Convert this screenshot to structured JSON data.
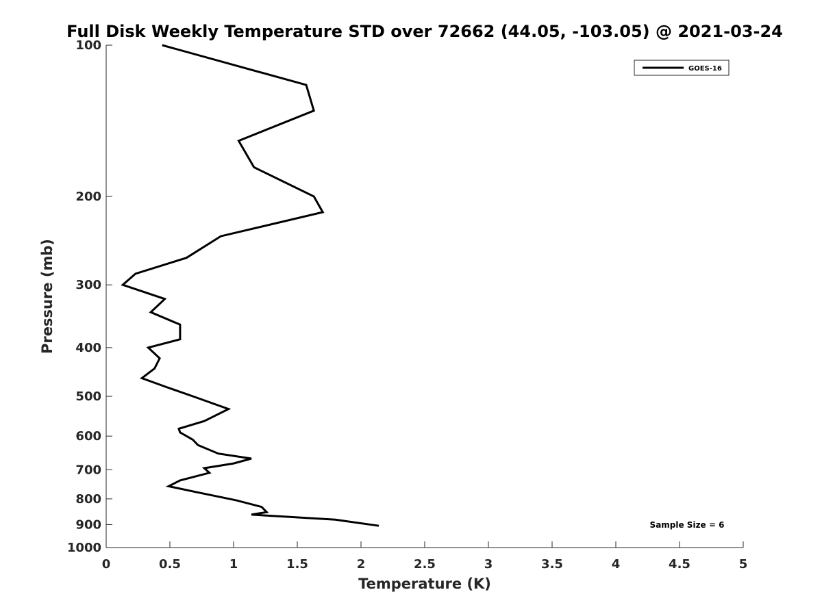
{
  "chart_data": {
    "type": "line",
    "title": "Full Disk Weekly Temperature STD over 72662 (44.05, -103.05) @ 2021-03-24",
    "xlabel": "Temperature (K)",
    "ylabel": "Pressure (mb)",
    "xlim": [
      0,
      5
    ],
    "ylim": [
      100,
      1000
    ],
    "y_scale": "log",
    "y_reversed": true,
    "x_ticks": [
      0,
      0.5,
      1,
      1.5,
      2,
      2.5,
      3,
      3.5,
      4,
      4.5,
      5
    ],
    "x_tick_labels": [
      "0",
      "0.5",
      "1",
      "1.5",
      "2",
      "2.5",
      "3",
      "3.5",
      "4",
      "4.5",
      "5"
    ],
    "y_ticks": [
      100,
      200,
      300,
      400,
      500,
      600,
      700,
      800,
      900,
      1000
    ],
    "y_tick_labels": [
      "100",
      "200",
      "300",
      "400",
      "500",
      "600",
      "700",
      "800",
      "900",
      "1000"
    ],
    "grid": false,
    "legend_position": "top-right",
    "series": [
      {
        "name": "GOES-16",
        "color": "#000000",
        "x": [
          0.44,
          1.57,
          1.63,
          1.04,
          1.16,
          1.63,
          1.7,
          0.9,
          0.63,
          0.23,
          0.13,
          0.46,
          0.35,
          0.58,
          0.58,
          0.33,
          0.42,
          0.38,
          0.28,
          0.48,
          0.68,
          0.96,
          0.77,
          0.57,
          0.58,
          0.68,
          0.72,
          0.88,
          1.14,
          1.0,
          0.77,
          0.81,
          0.58,
          0.49,
          0.7,
          1.02,
          1.22,
          1.26,
          1.14,
          1.8,
          2.14
        ],
        "y": [
          100,
          120,
          135,
          155,
          175,
          200,
          215,
          240,
          265,
          285,
          300,
          320,
          340,
          360,
          385,
          400,
          420,
          440,
          460,
          480,
          500,
          530,
          560,
          580,
          590,
          610,
          625,
          650,
          665,
          680,
          695,
          710,
          735,
          755,
          775,
          805,
          830,
          850,
          860,
          880,
          905
        ]
      }
    ],
    "annotations": [
      {
        "text": "Sample Size = 6"
      }
    ]
  }
}
